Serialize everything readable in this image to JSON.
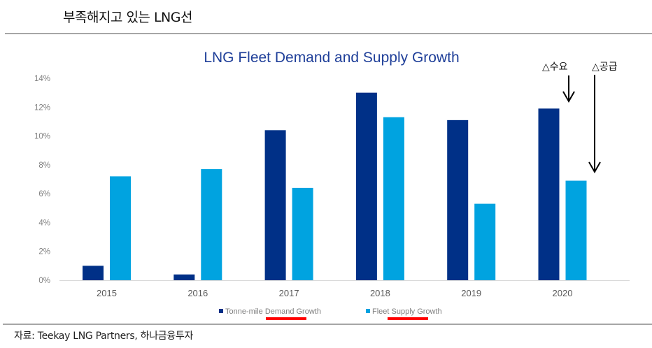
{
  "page": {
    "title": "부족해지고 있는 LNG선",
    "source": "자료: Teekay LNG Partners, 하나금융투자"
  },
  "chart_data": {
    "type": "bar",
    "title": "LNG Fleet Demand and Supply Growth",
    "xlabel": "",
    "ylabel": "",
    "categories": [
      "2015",
      "2016",
      "2017",
      "2018",
      "2019",
      "2020"
    ],
    "series": [
      {
        "name": "Tonne-mile Demand Growth",
        "color": "#003087",
        "values": [
          1.0,
          0.4,
          10.4,
          13.0,
          11.1,
          11.9
        ]
      },
      {
        "name": "Fleet Supply Growth",
        "color": "#00A3E0",
        "values": [
          7.2,
          7.7,
          6.4,
          11.3,
          5.3,
          6.9
        ]
      }
    ],
    "ylim": [
      0,
      14
    ],
    "yticks": [
      0,
      2,
      4,
      6,
      8,
      10,
      12,
      14
    ],
    "ytick_labels": [
      "0%",
      "2%",
      "4%",
      "6%",
      "8%",
      "10%",
      "12%",
      "14%"
    ],
    "grid": false,
    "legend": "bottom-center",
    "legend_highlight_color": "#ff0000",
    "annotations": [
      {
        "text": "△수요",
        "target_series": "Tonne-mile Demand Growth",
        "target_category": "2020"
      },
      {
        "text": "△공급",
        "target_series": "Fleet Supply Growth",
        "target_category": "2020"
      }
    ]
  }
}
